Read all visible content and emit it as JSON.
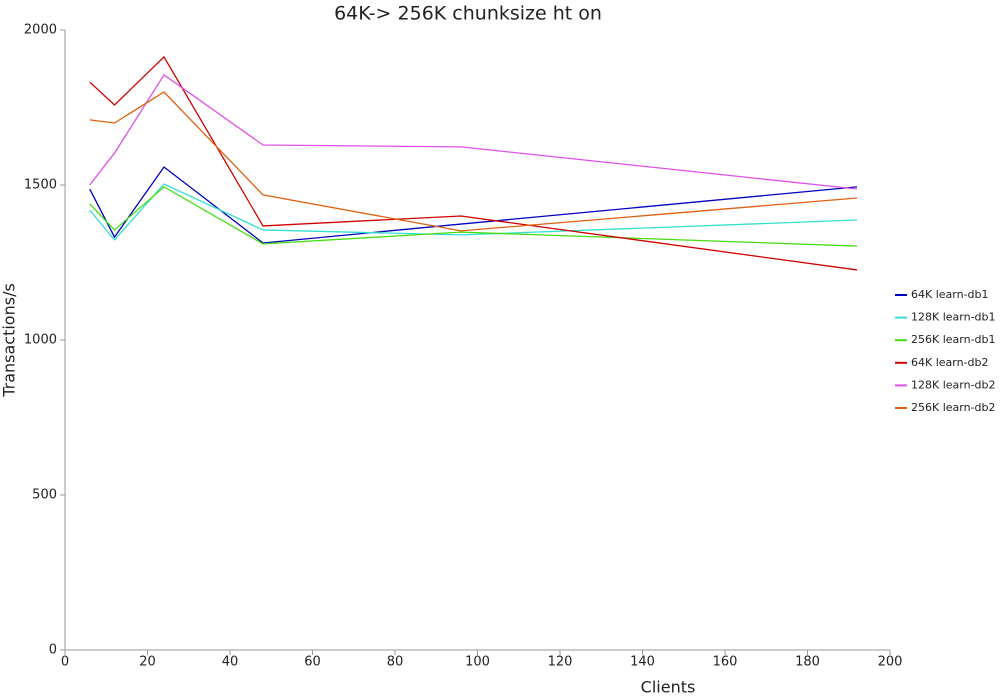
{
  "chart_data": {
    "type": "line",
    "title": "64K-> 256K chunksize ht on",
    "x_label": "Clients",
    "y_label": "Transactions/s",
    "x": [
      6,
      12,
      24,
      48,
      96,
      192
    ],
    "series": [
      {
        "name": "64K learn-db1",
        "color": "#0000c0",
        "values": [
          1487,
          1332,
          1558,
          1313,
          1374,
          1494
        ]
      },
      {
        "name": "128K learn-db1",
        "color": "#33e0d0",
        "values": [
          1419,
          1323,
          1503,
          1355,
          1339,
          1387
        ]
      },
      {
        "name": "256K learn-db1",
        "color": "#44dd11",
        "values": [
          1439,
          1355,
          1494,
          1310,
          1348,
          1303
        ]
      },
      {
        "name": "64K learn-db2",
        "color": "#d00000",
        "values": [
          1832,
          1758,
          1913,
          1368,
          1400,
          1226
        ]
      },
      {
        "name": "128K learn-db2",
        "color": "#e050e8",
        "values": [
          1500,
          1603,
          1855,
          1629,
          1623,
          1487
        ]
      },
      {
        "name": "256K learn-db2",
        "color": "#e06010",
        "values": [
          1710,
          1700,
          1800,
          1468,
          1352,
          1458
        ]
      }
    ],
    "xlim": [
      0,
      200
    ],
    "xticks": [
      0,
      20,
      40,
      60,
      80,
      100,
      120,
      140,
      160,
      180,
      200
    ],
    "ylim": [
      0,
      2000
    ],
    "yticks": [
      0,
      500,
      1000,
      1500,
      2000
    ],
    "grid": false,
    "legend": "right"
  }
}
